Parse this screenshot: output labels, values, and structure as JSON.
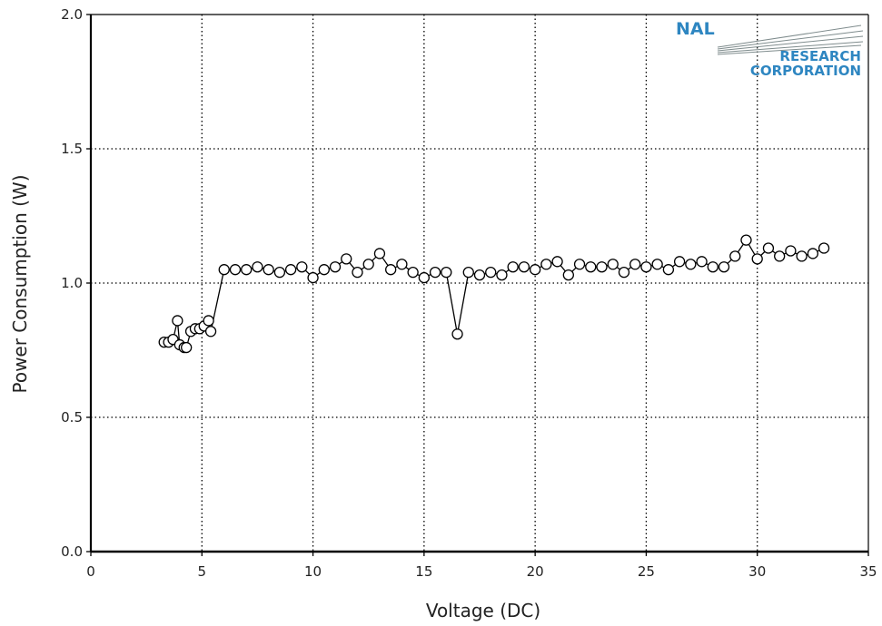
{
  "chart_data": {
    "type": "line",
    "xlabel": "Voltage (DC)",
    "ylabel": "Power Consumption (W)",
    "xlim": [
      0,
      35
    ],
    "ylim": [
      0.0,
      2.0
    ],
    "x_ticks": [
      "0",
      "5",
      "10",
      "15",
      "20",
      "25",
      "30",
      "35"
    ],
    "y_ticks": [
      "0.0",
      "0.5",
      "1.0",
      "1.5",
      "2.0"
    ],
    "grid": "dotted",
    "marker": "open-circle",
    "series": [
      {
        "x": [
          3.3,
          3.5,
          3.7,
          3.9,
          4.0,
          4.2,
          4.3,
          4.5,
          4.7,
          4.9,
          5.1,
          5.3,
          5.4,
          6.0,
          6.5,
          7.0,
          7.5,
          8.0,
          8.5,
          9.0,
          9.5,
          10.0,
          10.5,
          11.0,
          11.5,
          12.0,
          12.5,
          13.0,
          13.5,
          14.0,
          14.5,
          15.0,
          15.5,
          16.0,
          16.5,
          17.0,
          17.5,
          18.0,
          18.5,
          19.0,
          19.5,
          20.0,
          20.5,
          21.0,
          21.5,
          22.0,
          22.5,
          23.0,
          23.5,
          24.0,
          24.5,
          25.0,
          25.5,
          26.0,
          26.5,
          27.0,
          27.5,
          28.0,
          28.5,
          29.0,
          29.5,
          30.0,
          30.5,
          31.0,
          31.5,
          32.0,
          32.5,
          33.0
        ],
        "y": [
          0.78,
          0.78,
          0.79,
          0.86,
          0.77,
          0.76,
          0.76,
          0.82,
          0.83,
          0.83,
          0.84,
          0.86,
          0.82,
          1.05,
          1.05,
          1.05,
          1.06,
          1.05,
          1.04,
          1.05,
          1.06,
          1.02,
          1.05,
          1.06,
          1.09,
          1.04,
          1.07,
          1.11,
          1.05,
          1.07,
          1.04,
          1.02,
          1.04,
          1.04,
          0.81,
          1.04,
          1.03,
          1.04,
          1.03,
          1.06,
          1.06,
          1.05,
          1.07,
          1.08,
          1.03,
          1.07,
          1.06,
          1.06,
          1.07,
          1.04,
          1.07,
          1.06,
          1.07,
          1.05,
          1.08,
          1.07,
          1.08,
          1.06,
          1.06,
          1.1,
          1.16,
          1.09,
          1.13,
          1.1,
          1.12,
          1.1,
          1.11,
          1.13
        ]
      }
    ]
  },
  "logo": {
    "line1": "NAL",
    "line2": "Research",
    "line3": "Corporation"
  },
  "colors": {
    "logo": "#2e86c1",
    "axis": "#000000",
    "grid": "#000000",
    "line": "#000000",
    "marker_fill": "#ffffff"
  }
}
